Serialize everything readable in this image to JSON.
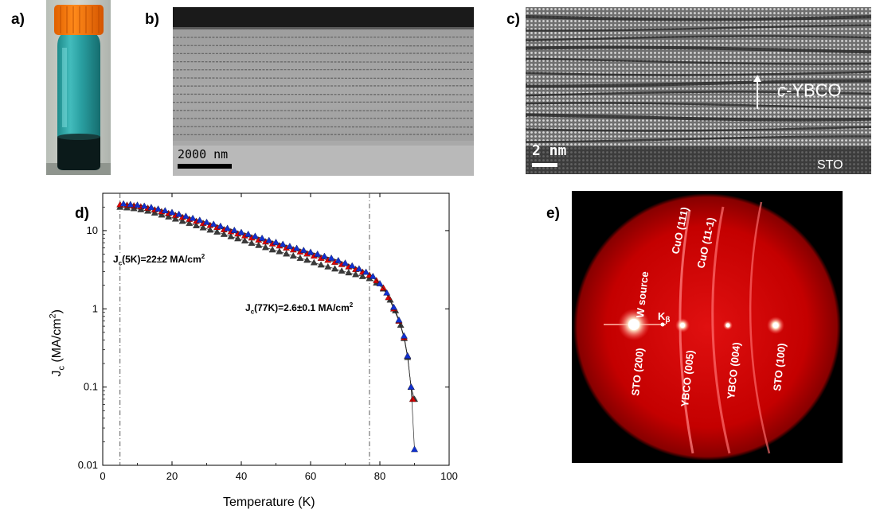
{
  "panels": {
    "a": {
      "label": "a)"
    },
    "b": {
      "label": "b)",
      "scale_bar": "2000 nm"
    },
    "c": {
      "label": "c)",
      "scale_bar": "2 nm",
      "arrow_label_italic": "c",
      "arrow_label_rest": "-YBCO",
      "substrate": "STO"
    },
    "d": {
      "label": "d)"
    },
    "e": {
      "label": "e)",
      "annotations": {
        "cuo111": "CuO (111)",
        "cuo11_1": "CuO (11-1)",
        "wsource": "W source",
        "kbeta_main": "K",
        "kbeta_sub": "β",
        "sto200": "STO (200)",
        "ybco005": "YBCO (005)",
        "ybco004": "YBCO (004)",
        "sto100": "STO (100)"
      }
    }
  },
  "chart_data": {
    "type": "scatter",
    "yscale": "log",
    "xlim": [
      0,
      100
    ],
    "ylim": [
      0.01,
      30
    ],
    "xlabel": "Temperature (K)",
    "ylabel_main": "J",
    "ylabel_sub": "c",
    "ylabel_rest": " (MA/cm",
    "ylabel_sup": "2",
    "ylabel_end": ")",
    "xticks": [
      0,
      20,
      40,
      60,
      80,
      100
    ],
    "yticks": [
      "0.01",
      "0.1",
      "1",
      "10"
    ],
    "vlines": [
      5,
      77
    ],
    "annotations": [
      {
        "main": "J",
        "sub": "c",
        "rest": "(5K)=22±2 MA/cm",
        "sup": "2",
        "x": 5,
        "y": 6.5
      },
      {
        "main": "J",
        "sub": "c",
        "rest": "(77K)=2.6±0.1 MA/cm",
        "sup": "2",
        "x": 42,
        "y": 1.5
      }
    ],
    "series": [
      {
        "color": "#3a3a3a",
        "points": [
          [
            5,
            20
          ],
          [
            7,
            19.6
          ],
          [
            9,
            19.2
          ],
          [
            11,
            18.6
          ],
          [
            13,
            17.8
          ],
          [
            15,
            16.8
          ],
          [
            17,
            15.9
          ],
          [
            19,
            15
          ],
          [
            21,
            14.1
          ],
          [
            23,
            13.2
          ],
          [
            25,
            12.4
          ],
          [
            27,
            11.6
          ],
          [
            29,
            10.9
          ],
          [
            31,
            10.2
          ],
          [
            33,
            9.6
          ],
          [
            35,
            9
          ],
          [
            37,
            8.4
          ],
          [
            39,
            7.9
          ],
          [
            41,
            7.4
          ],
          [
            43,
            6.9
          ],
          [
            45,
            6.5
          ],
          [
            47,
            6.1
          ],
          [
            49,
            5.7
          ],
          [
            51,
            5.4
          ],
          [
            53,
            5.05
          ],
          [
            55,
            4.75
          ],
          [
            57,
            4.45
          ],
          [
            59,
            4.2
          ],
          [
            61,
            3.9
          ],
          [
            63,
            3.65
          ],
          [
            65,
            3.45
          ],
          [
            67,
            3.25
          ],
          [
            69,
            3.05
          ],
          [
            71,
            2.9
          ],
          [
            73,
            2.75
          ],
          [
            75,
            2.6
          ],
          [
            77,
            2.45
          ],
          [
            79,
            2.15
          ],
          [
            81,
            1.8
          ],
          [
            83,
            1.3
          ],
          [
            84.5,
            0.95
          ],
          [
            86,
            0.62
          ],
          [
            87,
            0.42
          ],
          [
            88,
            0.24
          ],
          [
            89,
            0.1
          ],
          [
            90,
            0.07
          ]
        ]
      },
      {
        "color": "#e00000",
        "points": [
          [
            5,
            21.5
          ],
          [
            7,
            21.2
          ],
          [
            9,
            20.8
          ],
          [
            11,
            20.2
          ],
          [
            13,
            19.4
          ],
          [
            15,
            18.5
          ],
          [
            17,
            17.5
          ],
          [
            19,
            16.6
          ],
          [
            21,
            15.7
          ],
          [
            23,
            14.8
          ],
          [
            25,
            14
          ],
          [
            27,
            13.2
          ],
          [
            29,
            12.4
          ],
          [
            31,
            11.7
          ],
          [
            33,
            11
          ],
          [
            35,
            10.3
          ],
          [
            37,
            9.7
          ],
          [
            39,
            9.1
          ],
          [
            41,
            8.6
          ],
          [
            43,
            8.1
          ],
          [
            45,
            7.6
          ],
          [
            47,
            7.2
          ],
          [
            49,
            6.8
          ],
          [
            51,
            6.4
          ],
          [
            53,
            6
          ],
          [
            55,
            5.7
          ],
          [
            57,
            5.35
          ],
          [
            59,
            5.05
          ],
          [
            61,
            4.75
          ],
          [
            63,
            4.45
          ],
          [
            65,
            4.2
          ],
          [
            67,
            3.95
          ],
          [
            69,
            3.7
          ],
          [
            71,
            3.45
          ],
          [
            73,
            3.2
          ],
          [
            75,
            2.95
          ],
          [
            77,
            2.7
          ],
          [
            79,
            2.3
          ],
          [
            81,
            1.85
          ],
          [
            82.5,
            1.4
          ],
          [
            84,
            1
          ],
          [
            85.5,
            0.7
          ],
          [
            87,
            0.43
          ],
          [
            88,
            0.25
          ],
          [
            89,
            0.1
          ],
          [
            89.5,
            0.07
          ]
        ]
      },
      {
        "color": "#1030d0",
        "points": [
          [
            6,
            22
          ],
          [
            8,
            21.6
          ],
          [
            10,
            21.2
          ],
          [
            12,
            20.6
          ],
          [
            14,
            19.8
          ],
          [
            16,
            18.9
          ],
          [
            18,
            18
          ],
          [
            20,
            17.1
          ],
          [
            22,
            16.2
          ],
          [
            24,
            15.3
          ],
          [
            26,
            14.4
          ],
          [
            28,
            13.6
          ],
          [
            30,
            12.8
          ],
          [
            32,
            12.1
          ],
          [
            34,
            11.4
          ],
          [
            36,
            10.7
          ],
          [
            38,
            10.1
          ],
          [
            40,
            9.5
          ],
          [
            42,
            9
          ],
          [
            44,
            8.5
          ],
          [
            46,
            8
          ],
          [
            48,
            7.5
          ],
          [
            50,
            7.1
          ],
          [
            52,
            6.7
          ],
          [
            54,
            6.3
          ],
          [
            56,
            5.95
          ],
          [
            58,
            5.6
          ],
          [
            60,
            5.3
          ],
          [
            62,
            5
          ],
          [
            64,
            4.7
          ],
          [
            66,
            4.45
          ],
          [
            68,
            4.15
          ],
          [
            70,
            3.85
          ],
          [
            72,
            3.55
          ],
          [
            74,
            3.25
          ],
          [
            76,
            2.95
          ],
          [
            78,
            2.6
          ],
          [
            80,
            2.1
          ],
          [
            82,
            1.6
          ],
          [
            84,
            1.05
          ],
          [
            85.5,
            0.72
          ],
          [
            87,
            0.45
          ],
          [
            88,
            0.25
          ],
          [
            89,
            0.1
          ],
          [
            90,
            0.016
          ]
        ]
      }
    ]
  }
}
